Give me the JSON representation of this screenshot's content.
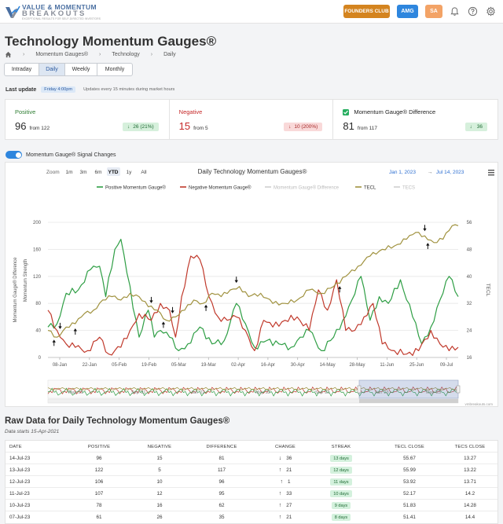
{
  "header": {
    "logo_line1": "VALUE & MOMENTUM",
    "logo_line2": "BREAKOUTS",
    "logo_tagline": "EXCEPTIONAL RESULTS FOR SELF-DIRECTED INVESTORS",
    "founders_label": "FOUNDERS CLUB",
    "amg_label": "AMG",
    "user_initials": "SA",
    "icons": [
      "bell-icon",
      "help-icon",
      "settings-icon"
    ]
  },
  "page": {
    "title": "Technology Momentum Gauges®",
    "breadcrumb": [
      "Momentum Gauges®",
      "Technology",
      "Daily"
    ]
  },
  "tabs": [
    {
      "label": "Intraday",
      "active": false
    },
    {
      "label": "Daily",
      "active": true
    },
    {
      "label": "Weekly",
      "active": false
    },
    {
      "label": "Monthly",
      "active": false
    }
  ],
  "last_update": {
    "label": "Last update",
    "value": "Friday 4:00pm",
    "note": "Updates every 15 minutes during market hours"
  },
  "cards": [
    {
      "title": "Positive",
      "value": "96",
      "from": "from 122",
      "change": "26 (21%)",
      "direction": "down",
      "tone": "green",
      "title_color": "#2e7d32"
    },
    {
      "title": "Negative",
      "value": "15",
      "from": "from 5",
      "change": "10 (200%)",
      "direction": "down",
      "tone": "red",
      "title_color": "#c62828"
    },
    {
      "title": "Momentum Gauge® Difference",
      "value": "81",
      "from": "from 117",
      "change": "36",
      "direction": "down",
      "tone": "green",
      "title_color": "#333333"
    }
  ],
  "signal_toggle": {
    "label": "Momentum Gauge® Signal Changes",
    "on": true
  },
  "chart_data": {
    "type": "line",
    "title": "Daily Technology Momentum Gauges®",
    "zoom_label": "Zoom",
    "zoom_options": [
      "1m",
      "3m",
      "6m",
      "YTD",
      "1y",
      "All"
    ],
    "zoom_selected": "YTD",
    "date_from": "Jan 1, 2023",
    "date_to": "Jul 14, 2023",
    "date_sep": "→",
    "ylabel_left_outer": "Momentum Gauge® Difference",
    "ylabel_left_inner": "Momentum Strength",
    "ylabel_right": "TECL",
    "left_ylim": [
      0,
      200
    ],
    "left_ticks": [
      0,
      40,
      80,
      120,
      160,
      200
    ],
    "right_ylim": [
      16,
      56
    ],
    "right_ticks": [
      16,
      24,
      32,
      40,
      48,
      56
    ],
    "x_ticks": [
      "08-Jan",
      "22-Jan",
      "05-Feb",
      "19-Feb",
      "05-Mar",
      "19-Mar",
      "02-Apr",
      "16-Apr",
      "30-Apr",
      "14-May",
      "28-May",
      "11-Jun",
      "25-Jun",
      "09-Jul"
    ],
    "x_count": 136,
    "legend": [
      {
        "name": "Positive Momentum Gauge®",
        "color": "#2e9e44",
        "visible": true
      },
      {
        "name": "Negative Momentum Gauge®",
        "color": "#c0392b",
        "visible": true
      },
      {
        "name": "Momentum Gauge® Difference",
        "color": "#bbbbbb",
        "visible": false
      },
      {
        "name": "TECL",
        "color": "#a0923f",
        "visible": true
      },
      {
        "name": "TECS",
        "color": "#bbbbbb",
        "visible": false
      }
    ],
    "series": [
      {
        "name": "Positive Momentum Gauge®",
        "axis": "left",
        "color": "#2e9e44",
        "x": [
          0,
          3,
          6,
          10,
          14,
          17,
          19,
          22,
          24,
          26,
          30,
          33,
          35,
          37,
          40,
          43,
          46,
          50,
          54,
          58,
          62,
          65,
          68,
          72,
          76,
          80,
          83,
          86,
          90,
          94,
          97,
          100,
          103,
          106,
          109,
          112,
          116,
          120,
          123,
          126,
          129,
          132,
          135
        ],
        "values": [
          45,
          50,
          95,
          100,
          130,
          135,
          90,
          160,
          175,
          125,
          30,
          70,
          30,
          40,
          30,
          10,
          20,
          45,
          20,
          25,
          80,
          50,
          15,
          25,
          20,
          15,
          30,
          40,
          10,
          30,
          55,
          85,
          120,
          55,
          90,
          80,
          115,
          60,
          20,
          45,
          85,
          120,
          90
        ]
      },
      {
        "name": "Negative Momentum Gauge®",
        "axis": "left",
        "color": "#c0392b",
        "x": [
          0,
          3,
          6,
          9,
          13,
          17,
          20,
          24,
          27,
          30,
          34,
          37,
          40,
          42,
          44,
          47,
          50,
          53,
          56,
          59,
          62,
          65,
          68,
          71,
          74,
          78,
          82,
          86,
          89,
          92,
          95,
          98,
          101,
          104,
          107,
          110,
          114,
          118,
          122,
          126,
          129,
          132,
          135
        ],
        "values": [
          70,
          40,
          20,
          15,
          10,
          30,
          5,
          15,
          40,
          65,
          55,
          80,
          70,
          30,
          90,
          150,
          145,
          90,
          60,
          55,
          60,
          40,
          10,
          55,
          45,
          55,
          60,
          40,
          100,
          70,
          115,
          40,
          40,
          60,
          80,
          20,
          10,
          5,
          10,
          40,
          20,
          10,
          15
        ]
      },
      {
        "name": "TECL",
        "axis": "right",
        "color": "#a0923f",
        "x": [
          0,
          3,
          6,
          9,
          12,
          15,
          18,
          21,
          24,
          27,
          30,
          33,
          36,
          39,
          42,
          45,
          48,
          51,
          54,
          57,
          60,
          63,
          66,
          70,
          74,
          78,
          82,
          86,
          90,
          94,
          98,
          102,
          106,
          110,
          114,
          118,
          121,
          124,
          127,
          130,
          133,
          135
        ],
        "values": [
          24,
          22,
          25,
          26,
          29,
          30,
          33,
          34,
          33,
          35,
          34,
          31,
          30,
          27,
          28,
          30,
          33,
          32,
          35,
          34,
          36,
          37,
          34,
          35,
          32,
          32,
          33,
          36,
          35,
          37,
          40,
          43,
          46,
          48,
          49,
          51,
          53,
          52,
          50,
          51,
          55,
          55
        ]
      }
    ],
    "signal_markers": [
      {
        "x": 2,
        "dir": "up"
      },
      {
        "x": 4,
        "dir": "down"
      },
      {
        "x": 9,
        "dir": "up"
      },
      {
        "x": 34,
        "dir": "down"
      },
      {
        "x": 38,
        "dir": "up"
      },
      {
        "x": 41,
        "dir": "down"
      },
      {
        "x": 52,
        "dir": "up"
      },
      {
        "x": 62,
        "dir": "down"
      },
      {
        "x": 96,
        "dir": "up"
      },
      {
        "x": 124,
        "dir": "down"
      },
      {
        "x": 125,
        "dir": "up"
      }
    ],
    "navigator_labels": [
      "May '21",
      "Sep '21",
      "Jan '22",
      "May '22",
      "Sep '22",
      "Jan '23",
      "May '23"
    ],
    "credit": "vmbreakouts.com"
  },
  "raw_data": {
    "title": "Raw Data for Daily Technology Momentum Gauges®",
    "subtitle": "Data starts 15-Apr-2021",
    "columns": [
      "DATE",
      "POSITIVE",
      "NEGATIVE",
      "DIFFERENCE",
      "CHANGE",
      "STREAK",
      "TECL CLOSE",
      "TECS CLOSE"
    ],
    "rows": [
      {
        "date": "14-Jul-23",
        "positive": "96",
        "negative": "15",
        "difference": "81",
        "dir": "down",
        "change": "36",
        "streak": "13 days",
        "tecl": "55.67",
        "tecs": "13.27"
      },
      {
        "date": "13-Jul-23",
        "positive": "122",
        "negative": "5",
        "difference": "117",
        "dir": "up",
        "change": "21",
        "streak": "12 days",
        "tecl": "55.99",
        "tecs": "13.22"
      },
      {
        "date": "12-Jul-23",
        "positive": "106",
        "negative": "10",
        "difference": "96",
        "dir": "up",
        "change": "1",
        "streak": "11 days",
        "tecl": "53.92",
        "tecs": "13.71"
      },
      {
        "date": "11-Jul-23",
        "positive": "107",
        "negative": "12",
        "difference": "95",
        "dir": "up",
        "change": "33",
        "streak": "10 days",
        "tecl": "52.17",
        "tecs": "14.2"
      },
      {
        "date": "10-Jul-23",
        "positive": "78",
        "negative": "16",
        "difference": "62",
        "dir": "up",
        "change": "27",
        "streak": "9 days",
        "tecl": "51.83",
        "tecs": "14.28"
      },
      {
        "date": "07-Jul-23",
        "positive": "61",
        "negative": "26",
        "difference": "35",
        "dir": "up",
        "change": "21",
        "streak": "8 days",
        "tecl": "51.41",
        "tecs": "14.4"
      }
    ]
  }
}
